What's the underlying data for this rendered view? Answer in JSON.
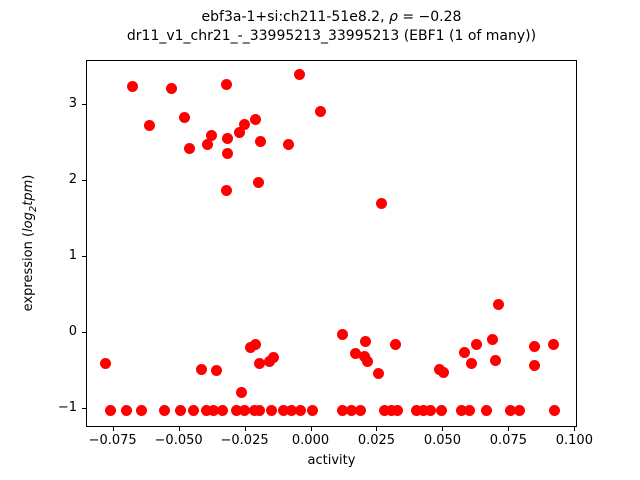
{
  "figure": {
    "title_line1_pre": "ebf3a-1+si:ch211-51e8.2, ",
    "title_line1_rho": "ρ",
    "title_line1_eq": " = −0.28",
    "title_line2": "dr11_v1_chr21_-_33995213_33995213 (EBF1 (1 of many))"
  },
  "axes": {
    "xlabel": "activity",
    "ylabel_prefix": "expression (",
    "ylabel_math_log": "log",
    "ylabel_sub": "2",
    "ylabel_math_tpm": "tpm",
    "ylabel_suffix": ")"
  },
  "chart_data": {
    "type": "scatter",
    "title": "ebf3a-1+si:ch211-51e8.2, ρ = −0.28 | dr11_v1_chr21_-_33995213_33995213 (EBF1 (1 of many))",
    "xlabel": "activity",
    "ylabel": "expression (log2 tpm)",
    "marker_color": "#ff0000",
    "grid": false,
    "legend": "none",
    "xlim": [
      -0.0851,
      0.101
    ],
    "ylim": [
      -1.254,
      3.573
    ],
    "x_tick_values": [
      -0.075,
      -0.05,
      -0.025,
      0.0,
      0.025,
      0.05,
      0.075,
      0.1
    ],
    "x_tick_labels": [
      "−0.075",
      "−0.050",
      "−0.025",
      "0.000",
      "0.025",
      "0.050",
      "0.075",
      "0.100"
    ],
    "y_tick_values": [
      -1,
      0,
      1,
      2,
      3
    ],
    "y_tick_labels": [
      "−1",
      "0",
      "1",
      "2",
      "3"
    ],
    "points": [
      [
        -0.0677,
        3.24
      ],
      [
        -0.0531,
        3.21
      ],
      [
        -0.0323,
        3.27
      ],
      [
        -0.0047,
        3.39
      ],
      [
        0.0034,
        2.91
      ],
      [
        -0.0615,
        2.72
      ],
      [
        -0.0483,
        2.83
      ],
      [
        -0.0462,
        2.42
      ],
      [
        -0.0395,
        2.48
      ],
      [
        -0.038,
        2.59
      ],
      [
        -0.0317,
        2.56
      ],
      [
        -0.032,
        2.35
      ],
      [
        -0.0273,
        2.63
      ],
      [
        -0.0254,
        2.74
      ],
      [
        -0.0213,
        2.8
      ],
      [
        -0.0194,
        2.51
      ],
      [
        -0.0089,
        2.47
      ],
      [
        -0.0201,
        1.98
      ],
      [
        -0.0323,
        1.87
      ],
      [
        0.0264,
        1.7
      ],
      [
        -0.0781,
        -0.41
      ],
      [
        -0.0418,
        -0.48
      ],
      [
        -0.0361,
        -0.5
      ],
      [
        -0.0232,
        -0.19
      ],
      [
        -0.0212,
        -0.15
      ],
      [
        -0.0197,
        -0.4
      ],
      [
        -0.0159,
        -0.38
      ],
      [
        -0.0146,
        -0.33
      ],
      [
        -0.0266,
        -0.79
      ],
      [
        0.0119,
        -0.02
      ],
      [
        0.0205,
        -0.12
      ],
      [
        0.0166,
        -0.27
      ],
      [
        0.0201,
        -0.31
      ],
      [
        0.0211,
        -0.38
      ],
      [
        0.0255,
        -0.54
      ],
      [
        0.0317,
        -0.16
      ],
      [
        0.0484,
        -0.48
      ],
      [
        0.0499,
        -0.52
      ],
      [
        0.058,
        -0.26
      ],
      [
        0.0605,
        -0.4
      ],
      [
        0.0627,
        -0.16
      ],
      [
        0.0687,
        -0.09
      ],
      [
        0.0697,
        -0.36
      ],
      [
        0.071,
        0.37
      ],
      [
        0.0845,
        -0.18
      ],
      [
        0.0845,
        -0.43
      ],
      [
        0.0917,
        -0.15
      ],
      [
        -0.0763,
        -1.03
      ],
      [
        -0.0702,
        -1.03
      ],
      [
        -0.0645,
        -1.03
      ],
      [
        -0.0557,
        -1.03
      ],
      [
        -0.0496,
        -1.03
      ],
      [
        -0.0449,
        -1.03
      ],
      [
        -0.0399,
        -1.03
      ],
      [
        -0.0371,
        -1.03
      ],
      [
        -0.0336,
        -1.03
      ],
      [
        -0.0285,
        -1.03
      ],
      [
        -0.0254,
        -1.03
      ],
      [
        -0.0216,
        -1.03
      ],
      [
        -0.0198,
        -1.03
      ],
      [
        -0.0153,
        -1.03
      ],
      [
        -0.0108,
        -1.03
      ],
      [
        -0.0077,
        -1.03
      ],
      [
        -0.0043,
        -1.03
      ],
      [
        0.0005,
        -1.03
      ],
      [
        0.0116,
        -1.03
      ],
      [
        0.015,
        -1.03
      ],
      [
        0.0184,
        -1.03
      ],
      [
        0.0275,
        -1.03
      ],
      [
        0.0302,
        -1.03
      ],
      [
        0.0325,
        -1.03
      ],
      [
        0.0397,
        -1.03
      ],
      [
        0.0424,
        -1.03
      ],
      [
        0.045,
        -1.03
      ],
      [
        0.0491,
        -1.03
      ],
      [
        0.0567,
        -1.03
      ],
      [
        0.0598,
        -1.03
      ],
      [
        0.0662,
        -1.03
      ],
      [
        0.0754,
        -1.03
      ],
      [
        0.0788,
        -1.03
      ],
      [
        0.092,
        -1.03
      ]
    ]
  }
}
